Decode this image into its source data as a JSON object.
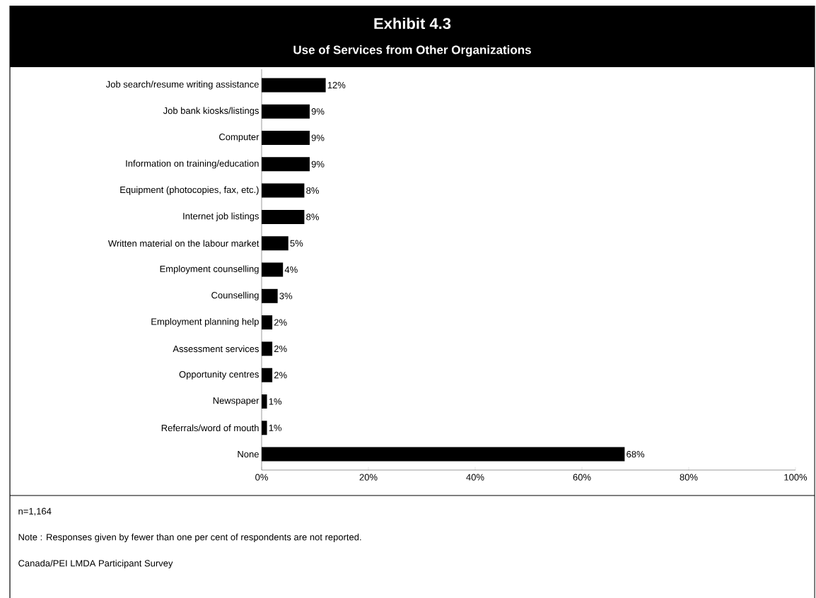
{
  "chart_data": {
    "type": "bar",
    "orientation": "horizontal",
    "title": "Exhibit 4.3",
    "subtitle": "Use of Services from Other Organizations",
    "categories": [
      "Job search/resume writing assistance",
      "Job bank kiosks/listings",
      "Computer",
      "Information on training/education",
      "Equipment (photocopies, fax, etc.)",
      "Internet job listings",
      "Written material on the labour market",
      "Employment counselling",
      "Counselling",
      "Employment planning help",
      "Assessment services",
      "Opportunity centres",
      "Newspaper",
      "Referrals/word of mouth",
      "None"
    ],
    "values": [
      12,
      9,
      9,
      9,
      8,
      8,
      5,
      4,
      3,
      2,
      2,
      2,
      1,
      1,
      68
    ],
    "value_labels": [
      "12%",
      "9%",
      "9%",
      "9%",
      "8%",
      "8%",
      "5%",
      "4%",
      "3%",
      "2%",
      "2%",
      "2%",
      "1%",
      "1%",
      "68%"
    ],
    "color": "#000000",
    "xlim": [
      0,
      100
    ],
    "xticks": [
      {
        "value": 0,
        "label": "0%"
      },
      {
        "value": 20,
        "label": "20%"
      },
      {
        "value": 40,
        "label": "40%"
      },
      {
        "value": 60,
        "label": "60%"
      },
      {
        "value": 80,
        "label": "80%"
      },
      {
        "value": 100,
        "label": "100%"
      }
    ],
    "annotations": [
      "n=1,164",
      "Note : Responses given by fewer than one per cent of respondents are not reported.",
      "Canada/PEI LMDA Participant Survey"
    ]
  }
}
